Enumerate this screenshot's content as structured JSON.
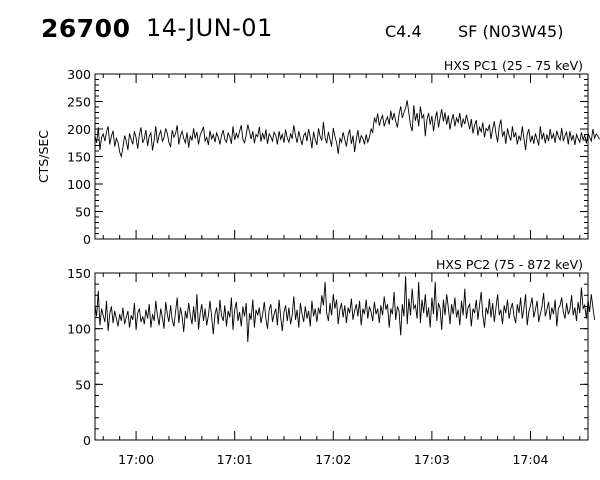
{
  "header": {
    "event_id": "26700",
    "date": "14-JUN-01",
    "goes_class": "C4.4",
    "location": "SF (N03W45)"
  },
  "chart_data": [
    {
      "type": "line",
      "title": "HXS PC1 (25 - 75 keV)",
      "ylabel": "CTS/SEC",
      "xlabel": "",
      "ylim": [
        0,
        300
      ],
      "yticks": [
        0,
        50,
        100,
        150,
        200,
        250,
        300
      ],
      "xlim": [
        "16:59:35",
        "17:04:35"
      ],
      "xticks": [
        "17:00",
        "17:01",
        "17:02",
        "17:03",
        "17:04"
      ],
      "grid": false,
      "series": [
        {
          "x_start": "16:59:35",
          "x_step_seconds": 1,
          "values": [
            188,
            175,
            203,
            162,
            185,
            191,
            178,
            195,
            205,
            172,
            187,
            197,
            168,
            183,
            176,
            158,
            150,
            166,
            188,
            179,
            162,
            192,
            181,
            172,
            196,
            184,
            164,
            190,
            203,
            175,
            182,
            198,
            169,
            187,
            193,
            161,
            180,
            205,
            174,
            189,
            197,
            178,
            184,
            201,
            192,
            176,
            167,
            198,
            185,
            191,
            207,
            172,
            188,
            196,
            183,
            175,
            194,
            166,
            188,
            179,
            201,
            183,
            195,
            172,
            189,
            196,
            204,
            178,
            185,
            171,
            197,
            182,
            190,
            176,
            193,
            185,
            172,
            188,
            198,
            181,
            176,
            193,
            186,
            173,
            205,
            180,
            192,
            184,
            196,
            207,
            181,
            175,
            189,
            208,
            195,
            182,
            196,
            174,
            190,
            186,
            204,
            177,
            193,
            181,
            199,
            173,
            191,
            186,
            178,
            194,
            188,
            172,
            196,
            181,
            190,
            175,
            199,
            183,
            176,
            192,
            182,
            207,
            188,
            175,
            196,
            183,
            171,
            188,
            193,
            178,
            200,
            185,
            165,
            195,
            181,
            171,
            201,
            187,
            179,
            213,
            184,
            174,
            195,
            181,
            168,
            202,
            187,
            175,
            155,
            183,
            176,
            194,
            181,
            168,
            189,
            199,
            173,
            188,
            158,
            181,
            198,
            174,
            188,
            183,
            172,
            190,
            176,
            185,
            200,
            194,
            221,
            212,
            228,
            206,
            217,
            225,
            205,
            215,
            222,
            208,
            233,
            216,
            229,
            214,
            203,
            226,
            241,
            220,
            230,
            238,
            252,
            228,
            207,
            196,
            243,
            215,
            229,
            205,
            241,
            220,
            226,
            187,
            218,
            229,
            208,
            224,
            196,
            218,
            232,
            203,
            221,
            236,
            214,
            230,
            208,
            225,
            199,
            216,
            227,
            205,
            220,
            212,
            229,
            203,
            218,
            209,
            226,
            213,
            200,
            218,
            192,
            207,
            216,
            188,
            203,
            195,
            212,
            185,
            201,
            197,
            208,
            182,
            200,
            214,
            191,
            176,
            205,
            217,
            186,
            196,
            173,
            201,
            188,
            179,
            205,
            185,
            194,
            172,
            188,
            179,
            205,
            183,
            162,
            190,
            200,
            176,
            188,
            173,
            192,
            181,
            170,
            205,
            181,
            193,
            174,
            190,
            178,
            200,
            182,
            191,
            175,
            197,
            186,
            180,
            202,
            178,
            188,
            194,
            172,
            196,
            180,
            189,
            171,
            190,
            183,
            176,
            194,
            180,
            189,
            174,
            193,
            185,
            178,
            200,
            183,
            191,
            187,
            181
          ]
        }
      ]
    },
    {
      "type": "line",
      "title": "HXS PC2 (75 - 872 keV)",
      "ylabel": "",
      "xlabel": "",
      "ylim": [
        0,
        150
      ],
      "yticks": [
        0,
        50,
        100,
        150
      ],
      "xlim": [
        "16:59:35",
        "17:04:35"
      ],
      "xticks": [
        "17:00",
        "17:01",
        "17:02",
        "17:03",
        "17:04"
      ],
      "grid": false,
      "series": [
        {
          "x_start": "16:59:35",
          "x_step_seconds": 1,
          "values": [
            121,
            111,
            134,
            103,
            118,
            112,
            106,
            125,
            98,
            114,
            120,
            105,
            116,
            109,
            102,
            113,
            107,
            119,
            104,
            110,
            116,
            101,
            112,
            108,
            123,
            99,
            114,
            118,
            106,
            111,
            104,
            117,
            109,
            122,
            101,
            113,
            107,
            125,
            112,
            103,
            118,
            110,
            100,
            124,
            113,
            106,
            121,
            108,
            102,
            115,
            128,
            105,
            119,
            111,
            97,
            116,
            109,
            123,
            112,
            104,
            120,
            106,
            131,
            99,
            114,
            122,
            107,
            118,
            103,
            112,
            125,
            110,
            95,
            113,
            119,
            104,
            126,
            112,
            107,
            121,
            102,
            116,
            110,
            128,
            99,
            117,
            124,
            107,
            115,
            102,
            120,
            111,
            123,
            88,
            114,
            108,
            126,
            101,
            117,
            112,
            119,
            105,
            113,
            124,
            109,
            100,
            117,
            122,
            106,
            113,
            118,
            103,
            126,
            110,
            98,
            115,
            121,
            107,
            119,
            104,
            112,
            129,
            108,
            117,
            101,
            123,
            113,
            106,
            120,
            109,
            116,
            102,
            125,
            111,
            118,
            106,
            119,
            113,
            130,
            121,
            142,
            114,
            107,
            123,
            112,
            131,
            118,
            126,
            104,
            117,
            123,
            110,
            121,
            105,
            119,
            114,
            127,
            108,
            116,
            122,
            111,
            125,
            103,
            118,
            113,
            126,
            109,
            120,
            115,
            107,
            124,
            113,
            118,
            105,
            121,
            112,
            129,
            117,
            122,
            101,
            118,
            113,
            133,
            108,
            120,
            116,
            94,
            122,
            111,
            147,
            104,
            127,
            112,
            136,
            118,
            121,
            109,
            142,
            105,
            126,
            114,
            131,
            110,
            119,
            101,
            128,
            113,
            142,
            107,
            123,
            118,
            99,
            126,
            112,
            131,
            119,
            104,
            122,
            113,
            128,
            110,
            117,
            103,
            125,
            112,
            136,
            109,
            119,
            122,
            102,
            118,
            114,
            126,
            108,
            121,
            133,
            112,
            101,
            119,
            113,
            127,
            110,
            123,
            106,
            119,
            131,
            112,
            117,
            104,
            121,
            114,
            126,
            109,
            118,
            123,
            111,
            105,
            122,
            114,
            128,
            109,
            118,
            131,
            103,
            115,
            121,
            128,
            110,
            117,
            125,
            106,
            113,
            120,
            132,
            111,
            117,
            124,
            108,
            119,
            113,
            126,
            102,
            118,
            121,
            128,
            115,
            109,
            123,
            113,
            117,
            130,
            112,
            119,
            107,
            124,
            114,
            137,
            118,
            121,
            109,
            126,
            115,
            131,
            119,
            108
          ]
        }
      ]
    }
  ]
}
